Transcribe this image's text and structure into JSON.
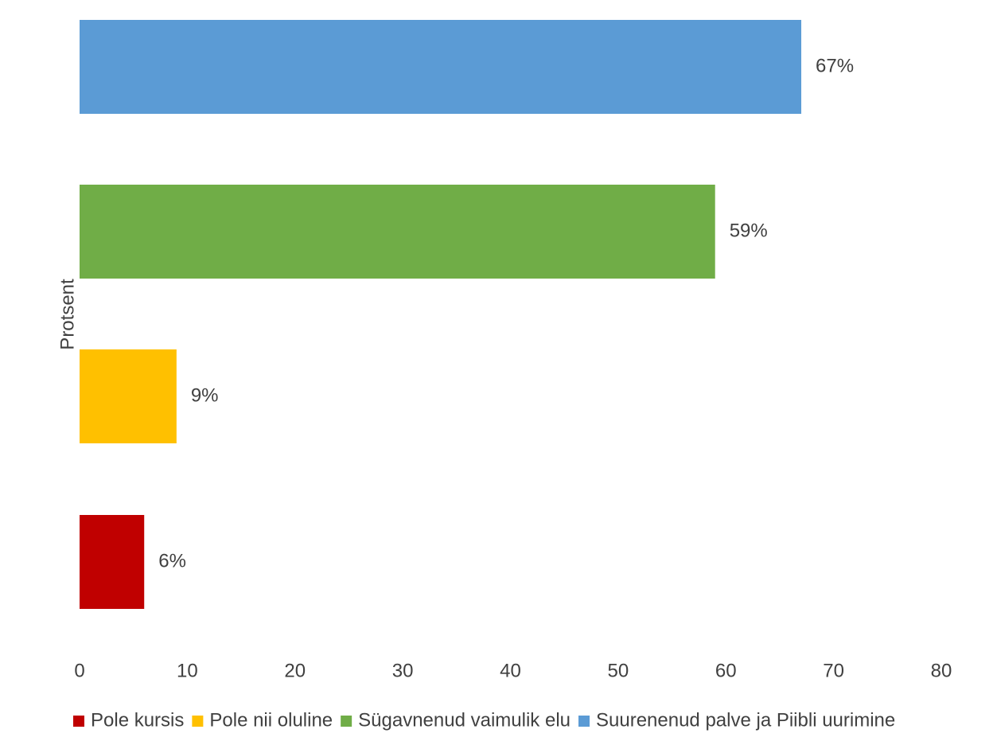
{
  "chart_data": {
    "type": "bar",
    "orientation": "horizontal",
    "title": "",
    "xlabel": "",
    "ylabel": "Protsent",
    "xlim": [
      0,
      80
    ],
    "x_ticks": [
      0,
      10,
      20,
      30,
      40,
      50,
      60,
      70,
      80
    ],
    "grid": false,
    "legend_position": "bottom",
    "series": [
      {
        "name": "Pole kursis",
        "value": 6,
        "label": "6%",
        "color": "#C00000"
      },
      {
        "name": "Pole nii oluline",
        "value": 9,
        "label": "9%",
        "color": "#FFC000"
      },
      {
        "name": "Sügavnenud vaimulik elu",
        "value": 59,
        "label": "59%",
        "color": "#70AD47"
      },
      {
        "name": "Suurenenud palve ja Piibli uurimine",
        "value": 67,
        "label": "67%",
        "color": "#5B9BD5"
      }
    ]
  }
}
